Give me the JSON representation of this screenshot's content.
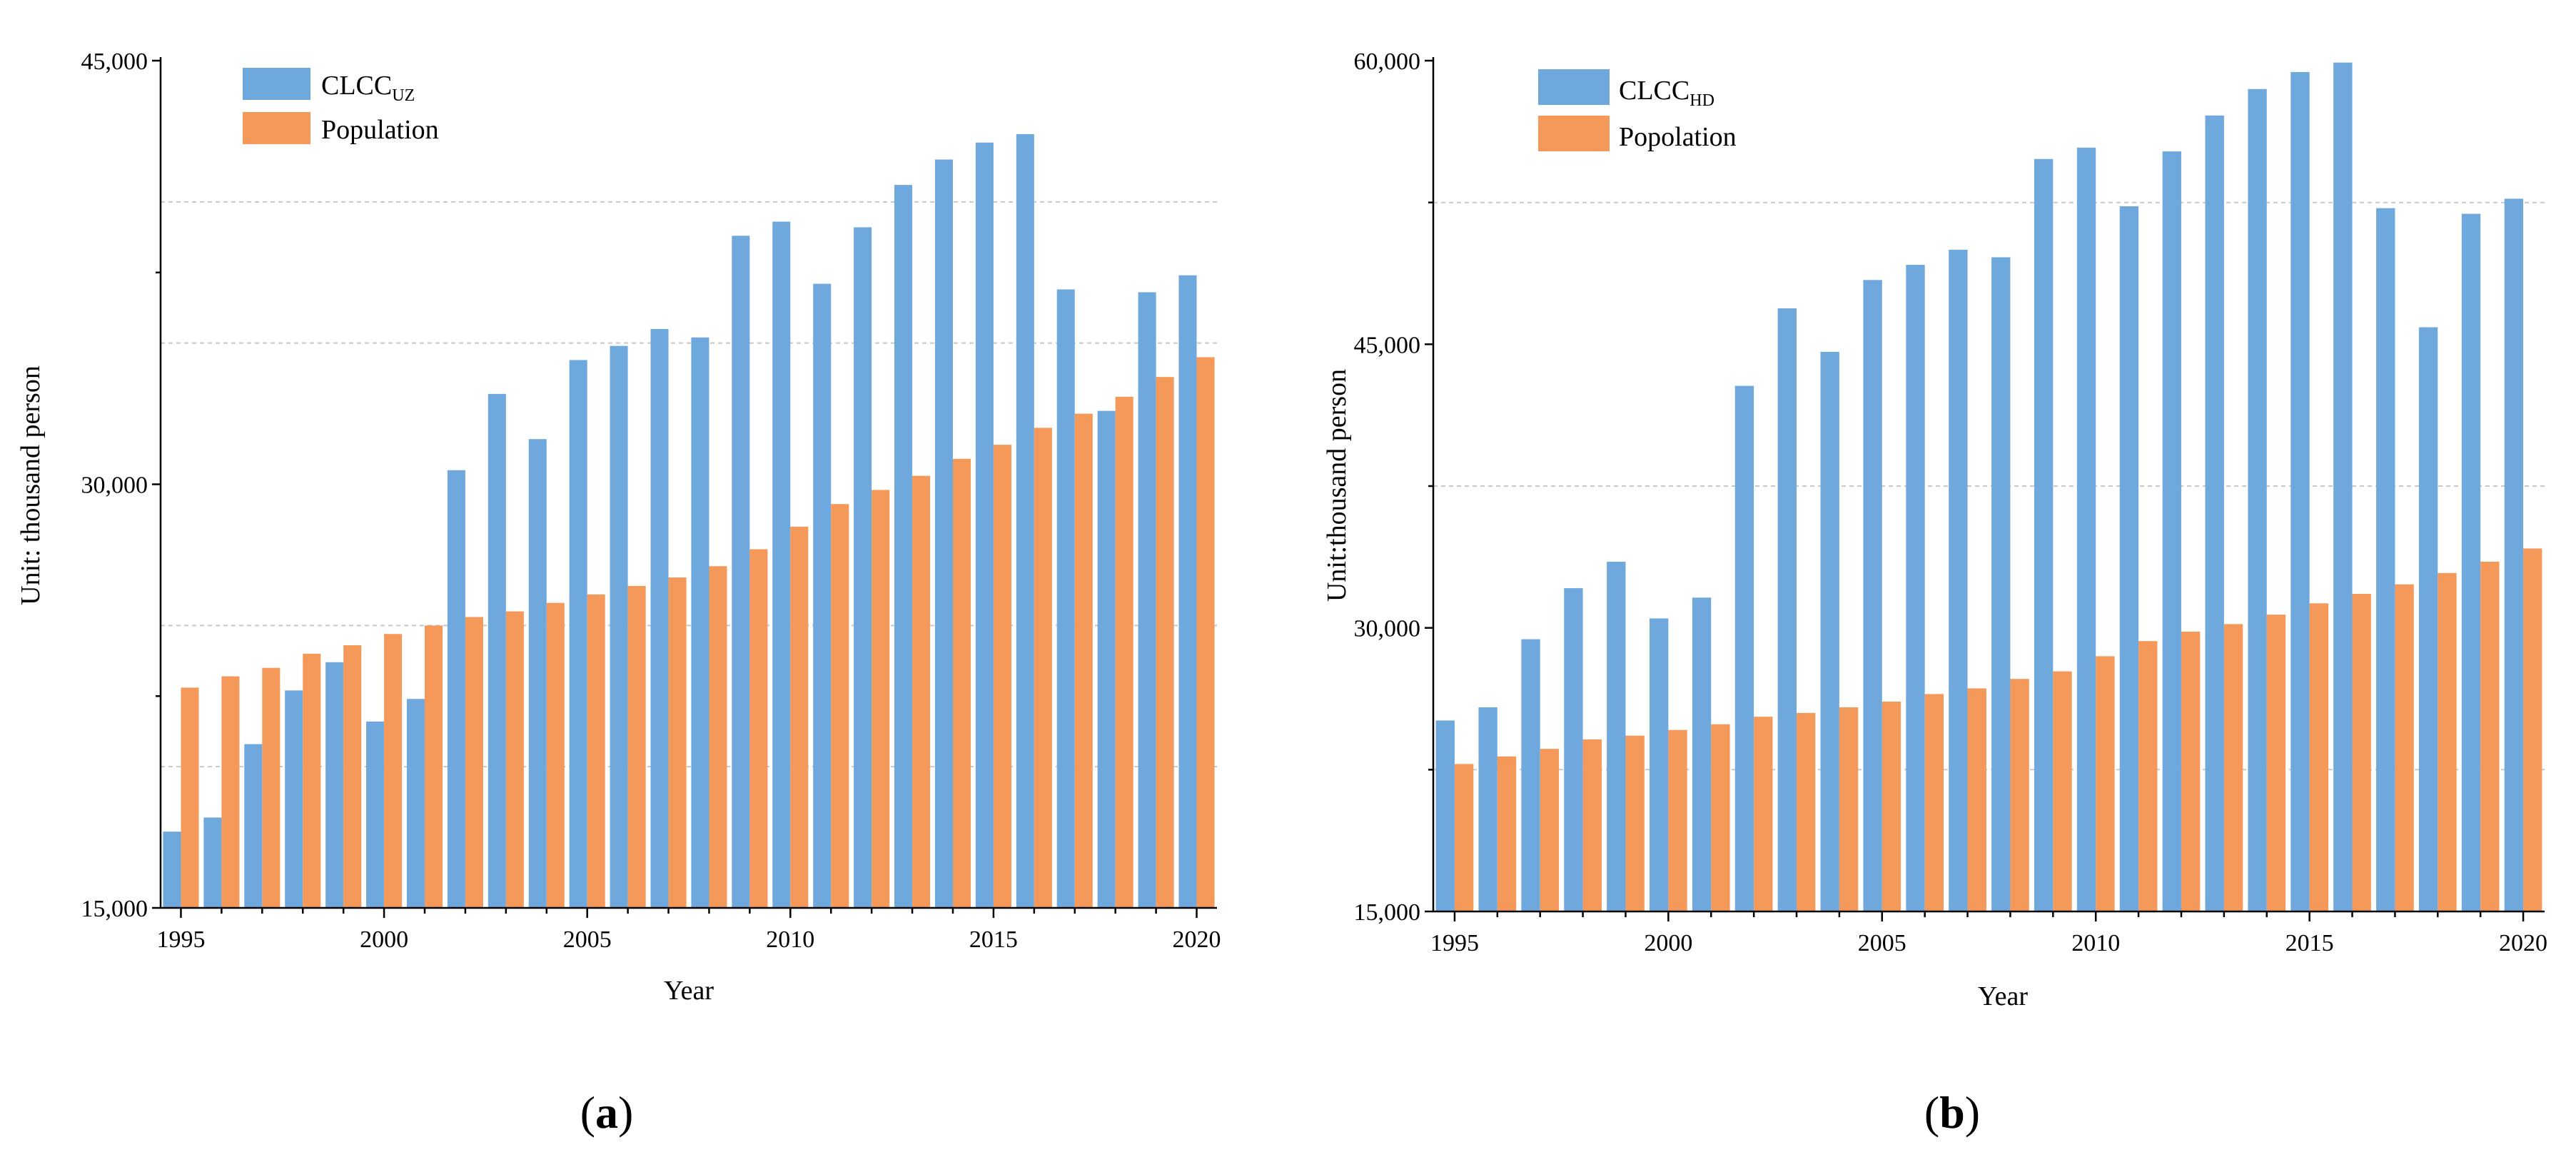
{
  "colors": {
    "clcc": "#6fa8dc",
    "population": "#f4995a",
    "grid": "#c8c8c8",
    "axis": "#000000"
  },
  "chart_data": [
    {
      "type": "bar",
      "panel": {
        "open": "(",
        "letter": "a",
        "close": ")"
      },
      "xlabel": "Year",
      "ylabel": "Unit: thousand person",
      "ylim": [
        15000,
        45000
      ],
      "ytick_values": [
        15000,
        30000,
        45000
      ],
      "yticks": [
        "15,000",
        "30,000",
        "45,000"
      ],
      "xtick_values": [
        1995,
        2000,
        2005,
        2010,
        2015,
        2020
      ],
      "xticks": [
        "1995",
        "2000",
        "2005",
        "2010",
        "2015",
        "2020"
      ],
      "x": [
        1995,
        1996,
        1997,
        1998,
        1999,
        2000,
        2001,
        2002,
        2003,
        2004,
        2005,
        2006,
        2007,
        2008,
        2009,
        2010,
        2011,
        2012,
        2013,
        2014,
        2015,
        2016,
        2017,
        2018,
        2019,
        2020
      ],
      "legend_position": "top-left",
      "series": [
        {
          "name": "CLCC",
          "subscript": "UZ",
          "color_key": "clcc",
          "values": [
            17700,
            18200,
            20800,
            22700,
            23700,
            21600,
            22400,
            30500,
            33200,
            31600,
            34400,
            34900,
            35500,
            35200,
            38800,
            39300,
            37100,
            39100,
            40600,
            41500,
            42100,
            42400,
            36900,
            32600,
            36800,
            37400
          ]
        },
        {
          "name": "Population",
          "subscript": "",
          "color_key": "population",
          "values": [
            22800,
            23200,
            23500,
            24000,
            24300,
            24700,
            25000,
            25300,
            25500,
            25800,
            26100,
            26400,
            26700,
            27100,
            27700,
            28500,
            29300,
            29800,
            30300,
            30900,
            31400,
            32000,
            32500,
            33100,
            33800,
            34500
          ]
        }
      ]
    },
    {
      "type": "bar",
      "panel": {
        "open": "(",
        "letter": "b",
        "close": ")"
      },
      "xlabel": "Year",
      "ylabel": "Unit:thousand person",
      "ylim": [
        15000,
        60000
      ],
      "ytick_values": [
        15000,
        30000,
        45000,
        60000
      ],
      "yticks": [
        "15,000",
        "30,000",
        "45,000",
        "60,000"
      ],
      "xtick_values": [
        1995,
        2000,
        2005,
        2010,
        2015,
        2020
      ],
      "xticks": [
        "1995",
        "2000",
        "2005",
        "2010",
        "2015",
        "2020"
      ],
      "x": [
        1995,
        1996,
        1997,
        1998,
        1999,
        2000,
        2001,
        2002,
        2003,
        2004,
        2005,
        2006,
        2007,
        2008,
        2009,
        2010,
        2011,
        2012,
        2013,
        2014,
        2015,
        2016,
        2017,
        2018,
        2019,
        2020
      ],
      "legend_position": "top-left",
      "series": [
        {
          "name": "CLCC",
          "subscript": "HD",
          "color_key": "clcc",
          "values": [
            25100,
            25800,
            29400,
            32100,
            33500,
            30500,
            31600,
            42800,
            46900,
            44600,
            48400,
            49200,
            50000,
            49600,
            54800,
            55400,
            52300,
            55200,
            57100,
            58500,
            59400,
            59900,
            52200,
            45900,
            51900,
            52700
          ]
        },
        {
          "name": "Popolation",
          "subscript": "",
          "color_key": "population",
          "values": [
            22800,
            23200,
            23600,
            24100,
            24300,
            24600,
            24900,
            25300,
            25500,
            25800,
            26100,
            26500,
            26800,
            27300,
            27700,
            28500,
            29300,
            29800,
            30200,
            30700,
            31300,
            31800,
            32300,
            32900,
            33500,
            34200
          ]
        }
      ]
    }
  ]
}
